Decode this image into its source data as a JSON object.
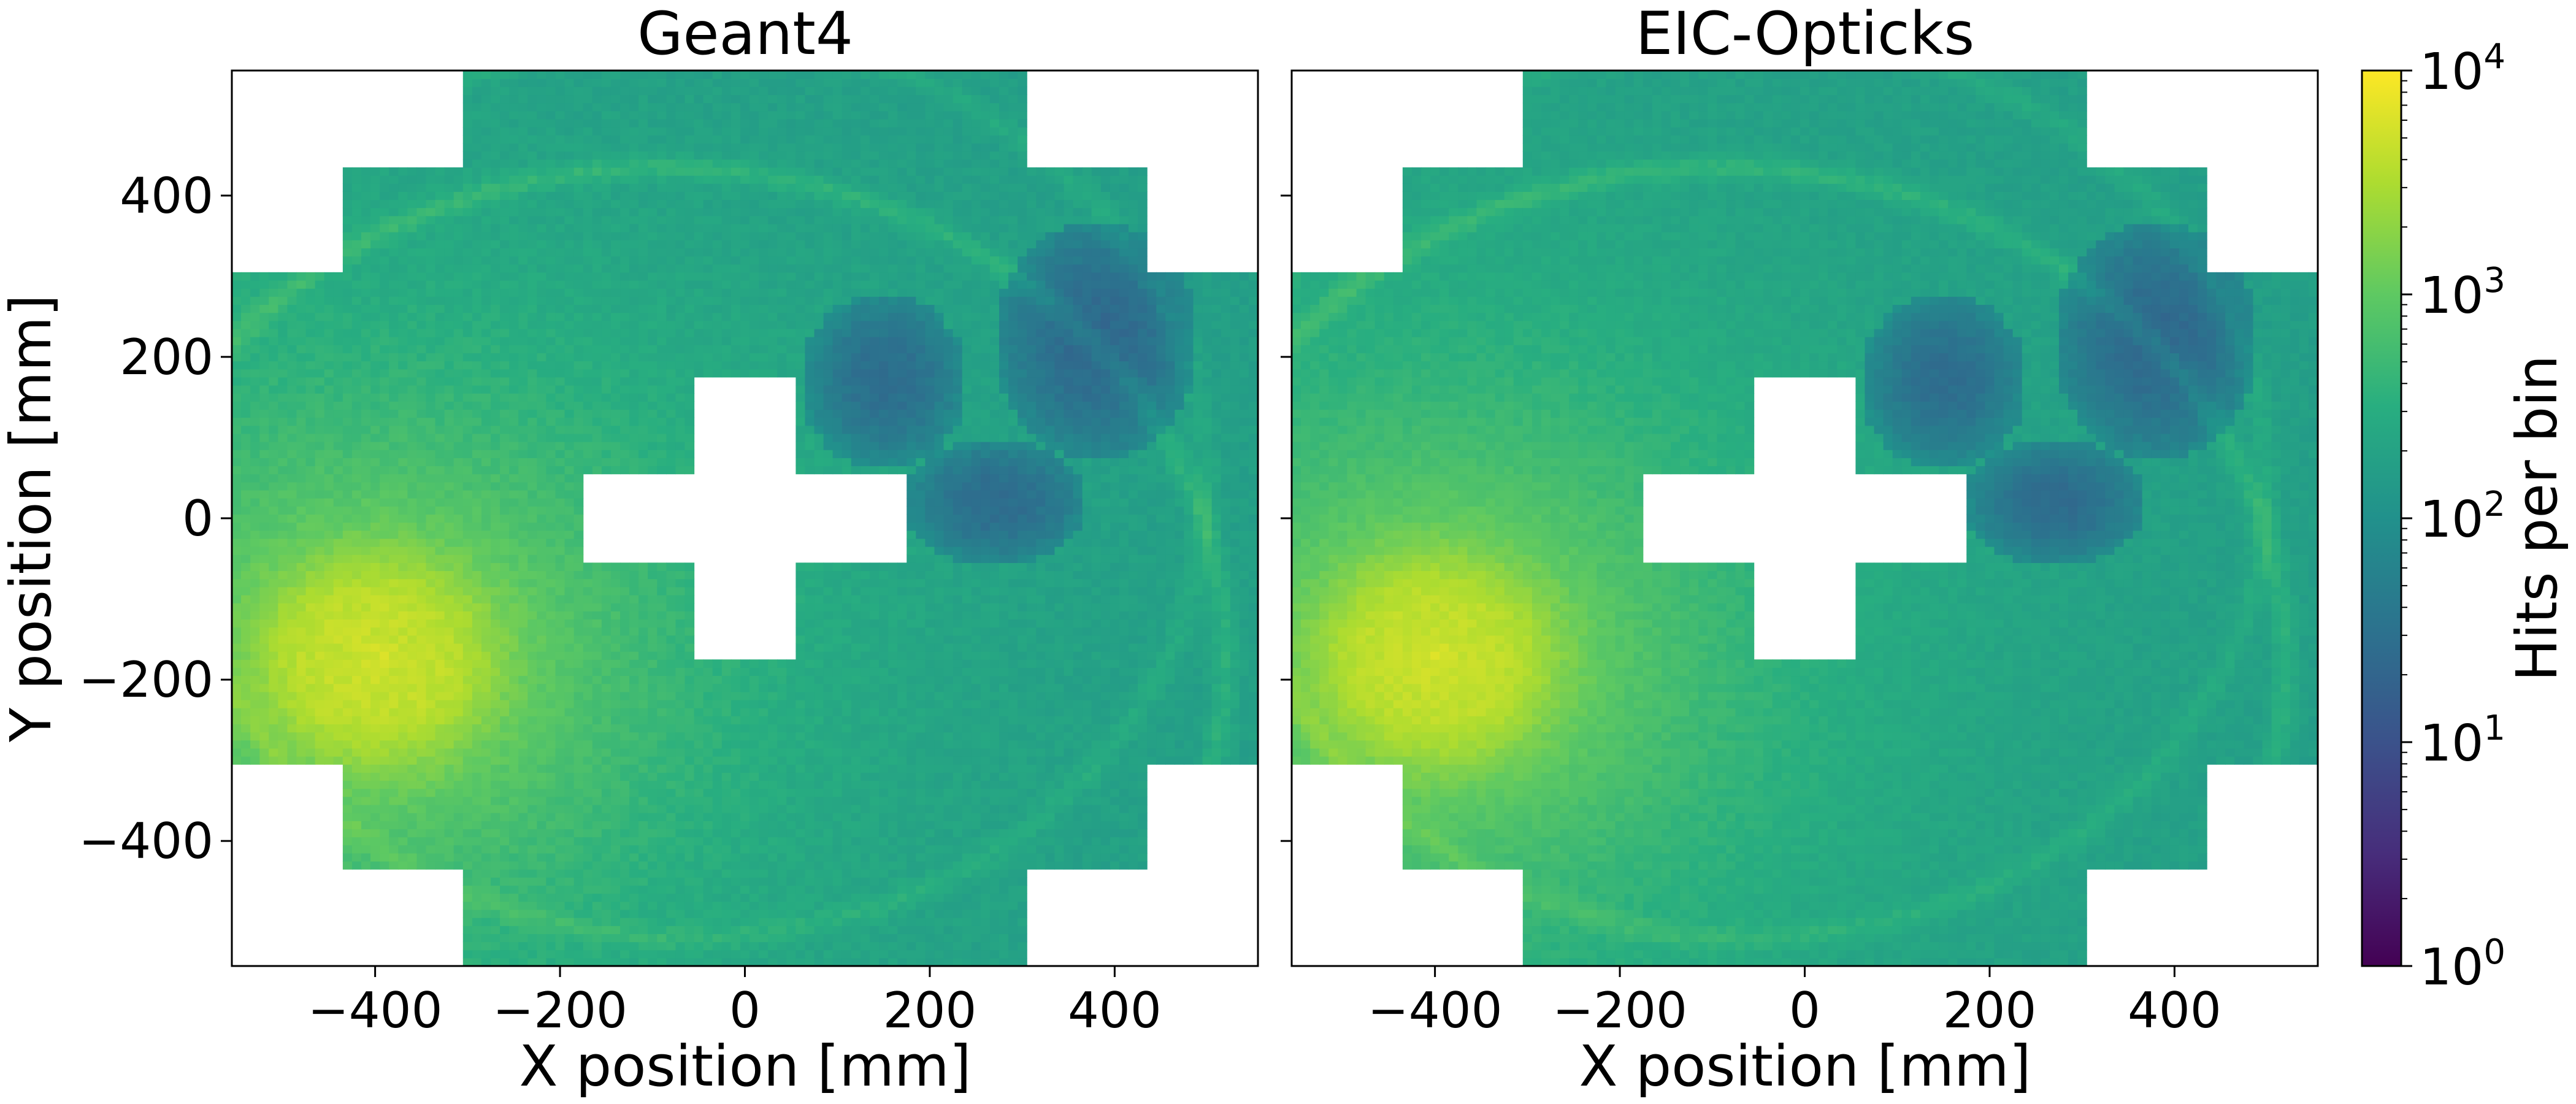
{
  "chart_data": [
    {
      "type": "heatmap",
      "title": "Geant4",
      "xlabel": "X position [mm]",
      "ylabel": "Y position [mm]",
      "xlim": [
        -555,
        555
      ],
      "ylim": [
        -555,
        555
      ],
      "xticks": [
        -400,
        -200,
        0,
        200,
        400
      ],
      "xtick_labels": [
        "−400",
        "−200",
        "0",
        "200",
        "400"
      ],
      "yticks": [
        -400,
        -200,
        0,
        200,
        400
      ],
      "ytick_labels": [
        "−400",
        "−200",
        "0",
        "200",
        "400"
      ],
      "bin_size_mm": 10,
      "color_scale": "log",
      "colormap": "viridis",
      "features": {
        "hot_spot_center_mm": [
          -400,
          -175
        ],
        "hot_spot_peak_hits": 8000,
        "background_hits": 150,
        "low_hit_regions_hits": 15,
        "central_cross_excluded": true,
        "arc_rings_present": true
      }
    },
    {
      "type": "heatmap",
      "title": "EIC-Opticks",
      "xlabel": "X position [mm]",
      "ylabel": "",
      "xlim": [
        -555,
        555
      ],
      "ylim": [
        -555,
        555
      ],
      "xticks": [
        -400,
        -200,
        0,
        200,
        400
      ],
      "xtick_labels": [
        "−400",
        "−200",
        "0",
        "200",
        "400"
      ],
      "yticks": [
        -400,
        -200,
        0,
        200,
        400
      ],
      "ytick_labels": [],
      "bin_size_mm": 10,
      "color_scale": "log",
      "colormap": "viridis",
      "features": {
        "hot_spot_center_mm": [
          -400,
          -175
        ],
        "hot_spot_peak_hits": 8000,
        "background_hits": 150,
        "low_hit_regions_hits": 15,
        "central_cross_excluded": true,
        "arc_rings_present": true
      }
    }
  ],
  "colorbar": {
    "label": "Hits per bin",
    "scale": "log",
    "range": [
      1,
      10000
    ],
    "ticks": [
      {
        "base": "10",
        "exp": "0",
        "value": 1
      },
      {
        "base": "10",
        "exp": "1",
        "value": 10
      },
      {
        "base": "10",
        "exp": "2",
        "value": 100
      },
      {
        "base": "10",
        "exp": "3",
        "value": 1000
      },
      {
        "base": "10",
        "exp": "4",
        "value": 10000
      }
    ],
    "colormap": "viridis"
  }
}
